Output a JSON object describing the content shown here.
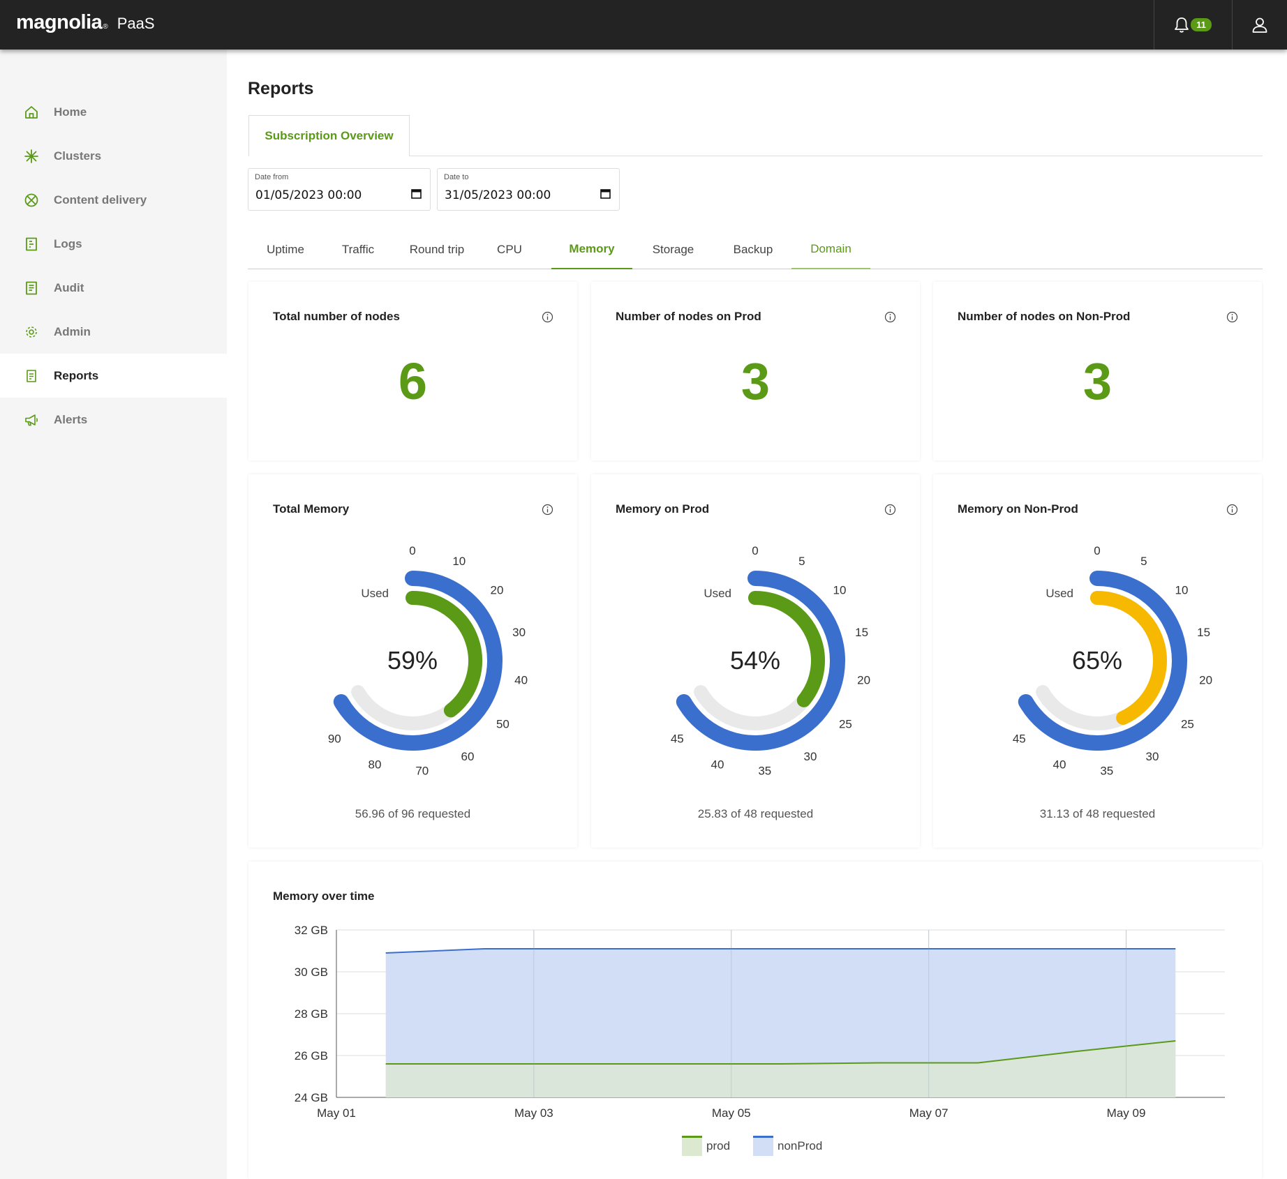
{
  "topbar": {
    "logo": "magnolia",
    "logo_reg": "®",
    "product": "PaaS",
    "notification_count": "11"
  },
  "sidebar": {
    "items": [
      {
        "label": "Home",
        "icon": "home-icon"
      },
      {
        "label": "Clusters",
        "icon": "clusters-icon"
      },
      {
        "label": "Content delivery",
        "icon": "content-delivery-icon"
      },
      {
        "label": "Logs",
        "icon": "logs-icon"
      },
      {
        "label": "Audit",
        "icon": "audit-icon"
      },
      {
        "label": "Admin",
        "icon": "gear-icon"
      },
      {
        "label": "Reports",
        "icon": "reports-icon"
      },
      {
        "label": "Alerts",
        "icon": "megaphone-icon"
      }
    ],
    "active": "Reports"
  },
  "page": {
    "title": "Reports",
    "subscription_tab": "Subscription Overview"
  },
  "filters": {
    "date_from_label": "Date from",
    "date_from_value": "01/05/2023 00:00",
    "date_to_label": "Date to",
    "date_to_value": "31/05/2023 00:00"
  },
  "metric_tabs": [
    "Uptime",
    "Traffic",
    "Round trip",
    "CPU",
    "Memory",
    "Storage",
    "Backup",
    "Domain"
  ],
  "active_metric_tab": "Memory",
  "node_cards": [
    {
      "title": "Total number of nodes",
      "value": "6"
    },
    {
      "title": "Number of nodes on Prod",
      "value": "3"
    },
    {
      "title": "Number of nodes on Non-Prod",
      "value": "3"
    }
  ],
  "memory_gauges": [
    {
      "title": "Total Memory",
      "percent_label": "59%",
      "used": 56.96,
      "requested": 96,
      "max": 96,
      "used_label": "Used",
      "footer": "56.96 of 96 requested",
      "ticks": [
        "0",
        "10",
        "20",
        "30",
        "40",
        "50",
        "60",
        "70",
        "80",
        "90"
      ],
      "tick_step": 10,
      "fill_color": "#5a9a16"
    },
    {
      "title": "Memory on Prod",
      "percent_label": "54%",
      "used": 25.83,
      "requested": 48,
      "max": 48,
      "used_label": "Used",
      "footer": "25.83 of 48 requested",
      "ticks": [
        "0",
        "5",
        "10",
        "15",
        "20",
        "25",
        "30",
        "35",
        "40",
        "45"
      ],
      "tick_step": 5,
      "fill_color": "#5a9a16"
    },
    {
      "title": "Memory on Non-Prod",
      "percent_label": "65%",
      "used": 31.13,
      "requested": 48,
      "max": 48,
      "used_label": "Used",
      "footer": "31.13 of 48 requested",
      "ticks": [
        "0",
        "5",
        "10",
        "15",
        "20",
        "25",
        "30",
        "35",
        "40",
        "45"
      ],
      "tick_step": 5,
      "fill_color": "#f7b900"
    }
  ],
  "chart_data": {
    "type": "area",
    "title": "Memory over time",
    "x_ticks": [
      "May 01",
      "May 03",
      "May 05",
      "May 07",
      "May 09"
    ],
    "y_ticks": [
      "32 GB",
      "30 GB",
      "28 GB",
      "26 GB",
      "24 GB"
    ],
    "ylim": [
      24,
      32
    ],
    "xlim_days": [
      1,
      10
    ],
    "grid": true,
    "legend_position": "bottom",
    "series": [
      {
        "name": "prod",
        "color": "#5a9a16",
        "fill": "#dce8cf",
        "x": [
          1.5,
          2.5,
          3.5,
          4.5,
          5.5,
          6.5,
          7.5,
          8.5,
          9.5
        ],
        "values": [
          25.6,
          25.6,
          25.6,
          25.6,
          25.6,
          25.65,
          25.65,
          26.2,
          26.7
        ]
      },
      {
        "name": "nonProd",
        "color": "#3b6fce",
        "fill": "#d2def5",
        "x": [
          1.5,
          2.5,
          3.5,
          4.5,
          5.5,
          6.5,
          7.5,
          8.5,
          9.5
        ],
        "values": [
          30.9,
          31.1,
          31.1,
          31.1,
          31.1,
          31.1,
          31.1,
          31.1,
          31.1
        ]
      }
    ]
  },
  "colors": {
    "accent": "#5a9a16",
    "gauge_ring": "#3b6fce",
    "gauge_track": "#e9e9e9",
    "topbar": "#232323"
  }
}
